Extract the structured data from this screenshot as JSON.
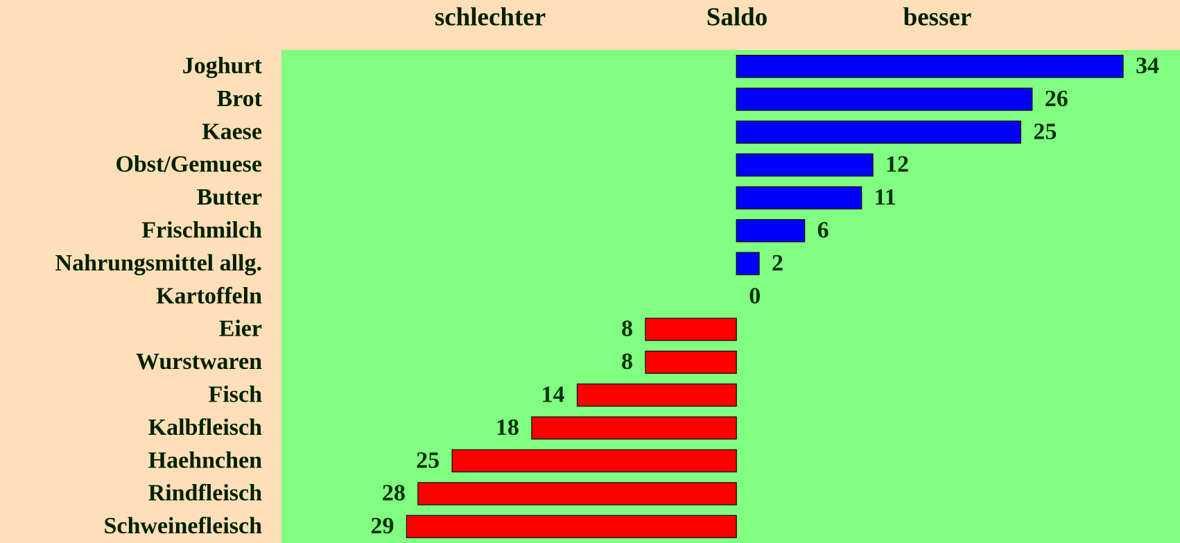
{
  "chart_data": {
    "type": "diverging-bar",
    "headings": [
      "schlechter",
      "Saldo",
      "besser"
    ],
    "categories": [
      "Joghurt",
      "Brot",
      "Kaese",
      "Obst/Gemuese",
      "Butter",
      "Frischmilch",
      "Nahrungsmittel allg.",
      "Kartoffeln",
      "Eier",
      "Wurstwaren",
      "Fisch",
      "Kalbfleisch",
      "Haehnchen",
      "Rindfleisch",
      "Schweinefleisch"
    ],
    "values": [
      34,
      26,
      25,
      12,
      11,
      6,
      2,
      0,
      -8,
      -8,
      -14,
      -18,
      -25,
      -28,
      -29
    ],
    "value_labels": [
      "34",
      "26",
      "25",
      "12",
      "11",
      "6",
      "2",
      "0",
      "8",
      "8",
      "14",
      "18",
      "25",
      "28",
      "29"
    ],
    "xlim": [
      -40,
      39
    ],
    "positive_color": "#0000ff",
    "negative_color": "#ff0000"
  }
}
